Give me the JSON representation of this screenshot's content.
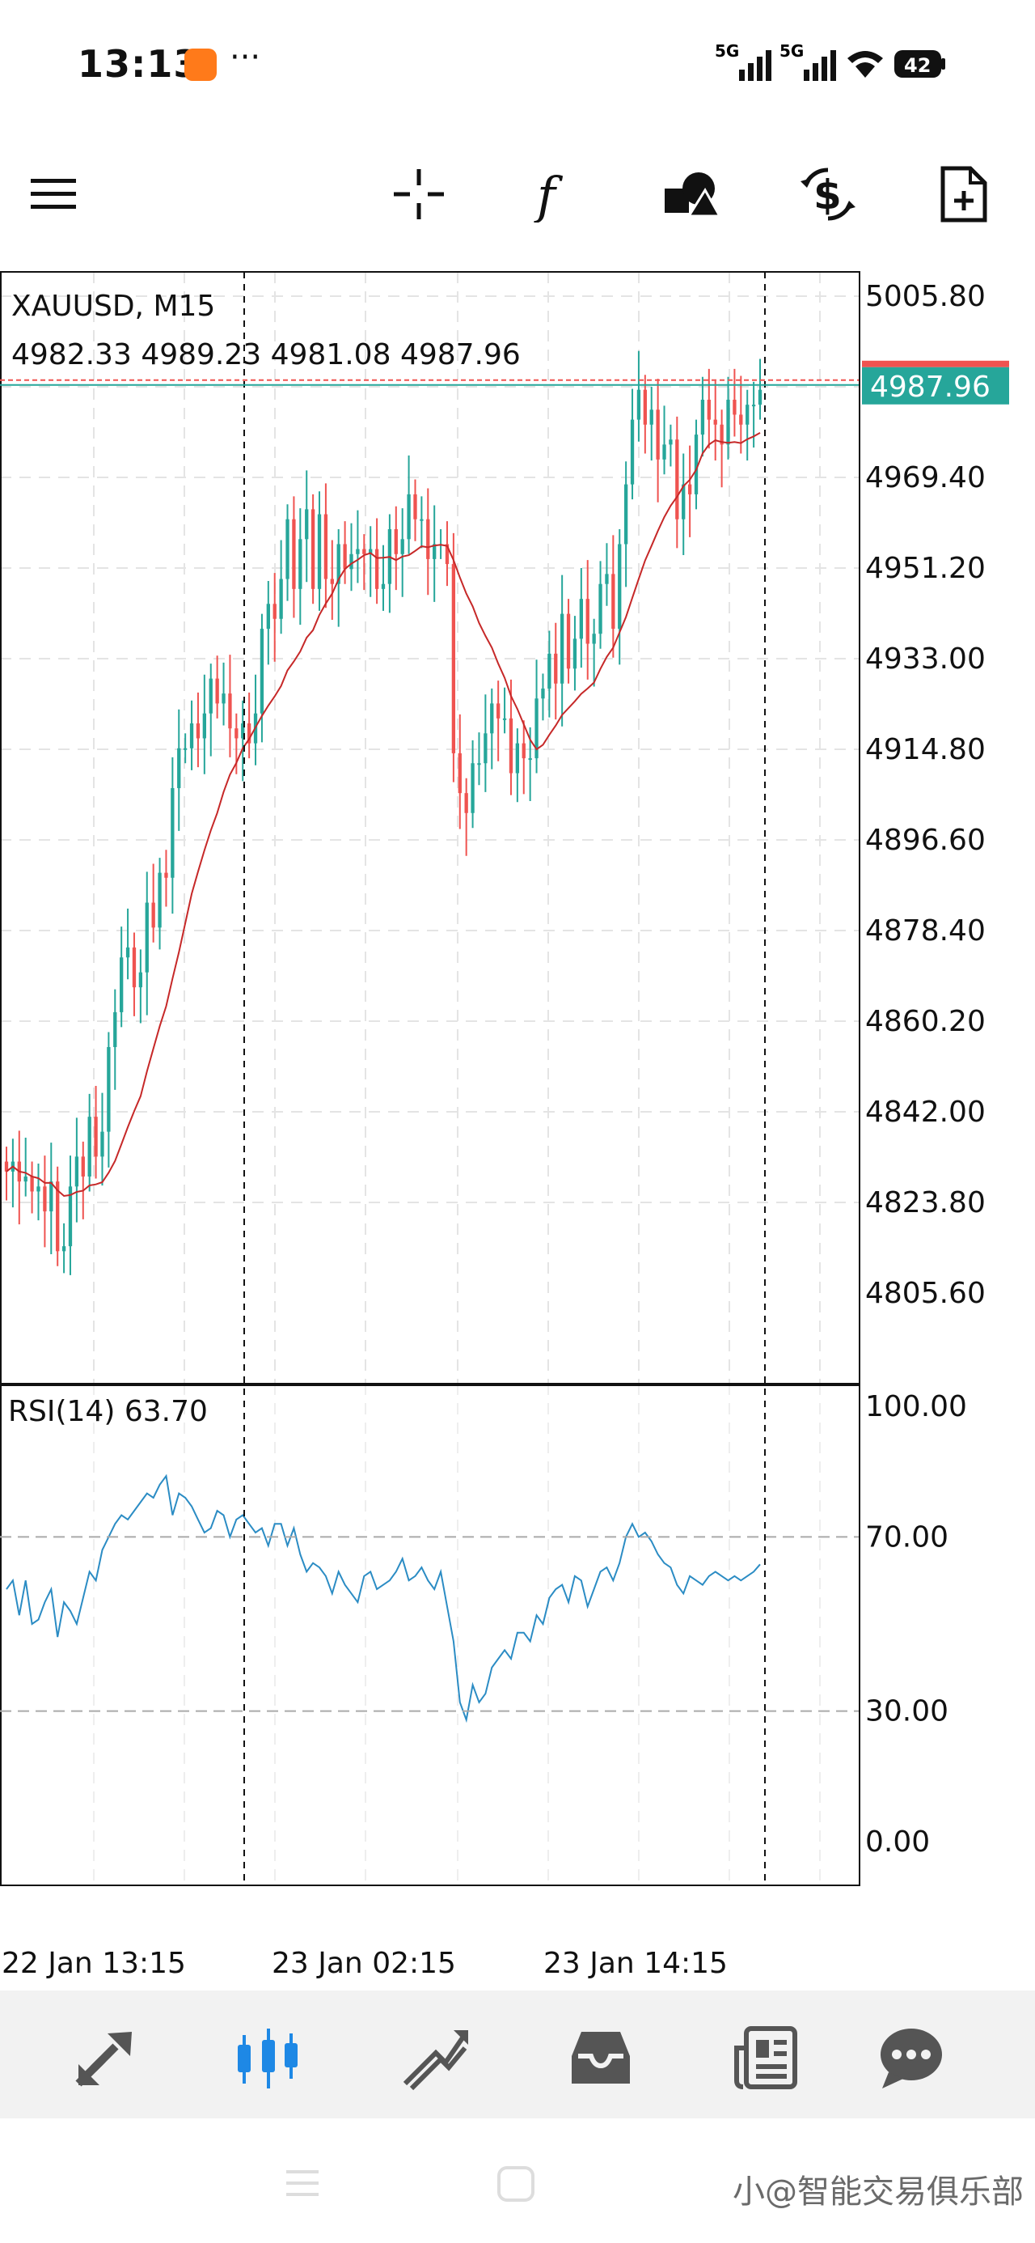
{
  "status_bar": {
    "time": "13:13",
    "dots": "···",
    "net1": "5G",
    "net2": "5G",
    "battery": "42"
  },
  "toolbar": {
    "icons": [
      "menu-icon",
      "crosshair-icon",
      "function-icon",
      "objects-icon",
      "trade-icon",
      "new-order-icon"
    ]
  },
  "chart": {
    "symbol": "XAUUSD, M15",
    "ohlc": "4982.33 4989.23 4981.08 4987.96",
    "current_price": "4987.96",
    "price_ticks": [
      "5005.80",
      "4969.40",
      "4951.20",
      "4933.00",
      "4914.80",
      "4896.60",
      "4878.40",
      "4860.20",
      "4842.00",
      "4823.80",
      "4805.60"
    ],
    "rsi_label": "RSI(14) 63.70",
    "rsi_ticks": [
      "100.00",
      "70.00",
      "30.00",
      "0.00"
    ],
    "time_labels": [
      "22 Jan 13:15",
      "23 Jan 02:15",
      "23 Jan 14:15"
    ],
    "colors": {
      "bull": "#26a69a",
      "bear": "#ef5350",
      "ma": "#c62828",
      "rsi": "#2b8cc4",
      "price_tag": "#26a69a"
    }
  },
  "chart_data": [
    {
      "type": "candlestick",
      "title": "XAUUSD, M15",
      "ylim": [
        4788,
        5015
      ],
      "close": [
        4830,
        4832,
        4828,
        4829,
        4826,
        4827,
        4822,
        4828,
        4814,
        4815,
        4827,
        4833,
        4829,
        4841,
        4833,
        4838,
        4855,
        4862,
        4873,
        4875,
        4867,
        4870,
        4884,
        4879,
        4890,
        4889,
        4907,
        4915,
        4915,
        4920,
        4917,
        4922,
        4929,
        4924,
        4926,
        4919,
        4917,
        4920,
        4916,
        4922,
        4939,
        4944,
        4941,
        4949,
        4961,
        4947,
        4957,
        4963,
        4947,
        4962,
        4949,
        4948,
        4956,
        4951,
        4954,
        4955,
        4954,
        4955,
        4947,
        4948,
        4959,
        4954,
        4957,
        4966,
        4961,
        4961,
        4953,
        4956,
        4956,
        4952,
        4914,
        4906,
        4902,
        4912,
        4912,
        4918,
        4924,
        4921,
        4921,
        4910,
        4916,
        4913,
        4913,
        4925,
        4927,
        4934,
        4928,
        4942,
        4931,
        4937,
        4945,
        4936,
        4938,
        4948,
        4950,
        4939,
        4956,
        4968,
        4981,
        4987,
        4980,
        4983,
        4973,
        4976,
        4977,
        4961,
        4968,
        4966,
        4978,
        4985,
        4981,
        4980,
        4976,
        4985,
        4982,
        4980,
        4984,
        4984,
        4987
      ],
      "ma_period": 14
    },
    {
      "type": "line",
      "title": "RSI(14) 63.70",
      "ylim": [
        0,
        100
      ],
      "levels": [
        30,
        70
      ],
      "values": [
        58,
        60,
        52,
        60,
        50,
        51,
        55,
        58,
        47,
        55,
        53,
        50,
        56,
        62,
        60,
        67,
        70,
        73,
        75,
        74,
        76,
        78,
        80,
        79,
        82,
        84,
        75,
        80,
        79,
        77,
        74,
        71,
        72,
        76,
        75,
        70,
        74,
        75,
        73,
        71,
        72,
        68,
        73,
        73,
        68,
        72,
        66,
        62,
        64,
        63,
        61,
        57,
        62,
        59,
        57,
        55,
        61,
        62,
        58,
        59,
        60,
        62,
        65,
        60,
        61,
        63,
        60,
        58,
        62,
        54,
        46,
        32,
        28,
        36,
        32,
        34,
        40,
        42,
        44,
        42,
        48,
        48,
        46,
        52,
        50,
        56,
        58,
        59,
        55,
        61,
        60,
        54,
        58,
        62,
        63,
        60,
        64,
        70,
        73,
        70,
        71,
        69,
        66,
        64,
        63,
        59,
        57,
        61,
        60,
        59,
        61,
        62,
        61,
        60,
        61,
        60,
        61,
        62,
        63.7
      ]
    }
  ],
  "bottom_nav": {
    "items": [
      "trade-nav",
      "chart-nav",
      "history-nav",
      "messages-inbox",
      "news-nav",
      "chat-nav"
    ]
  },
  "watermark": "小@智能交易俱乐部"
}
